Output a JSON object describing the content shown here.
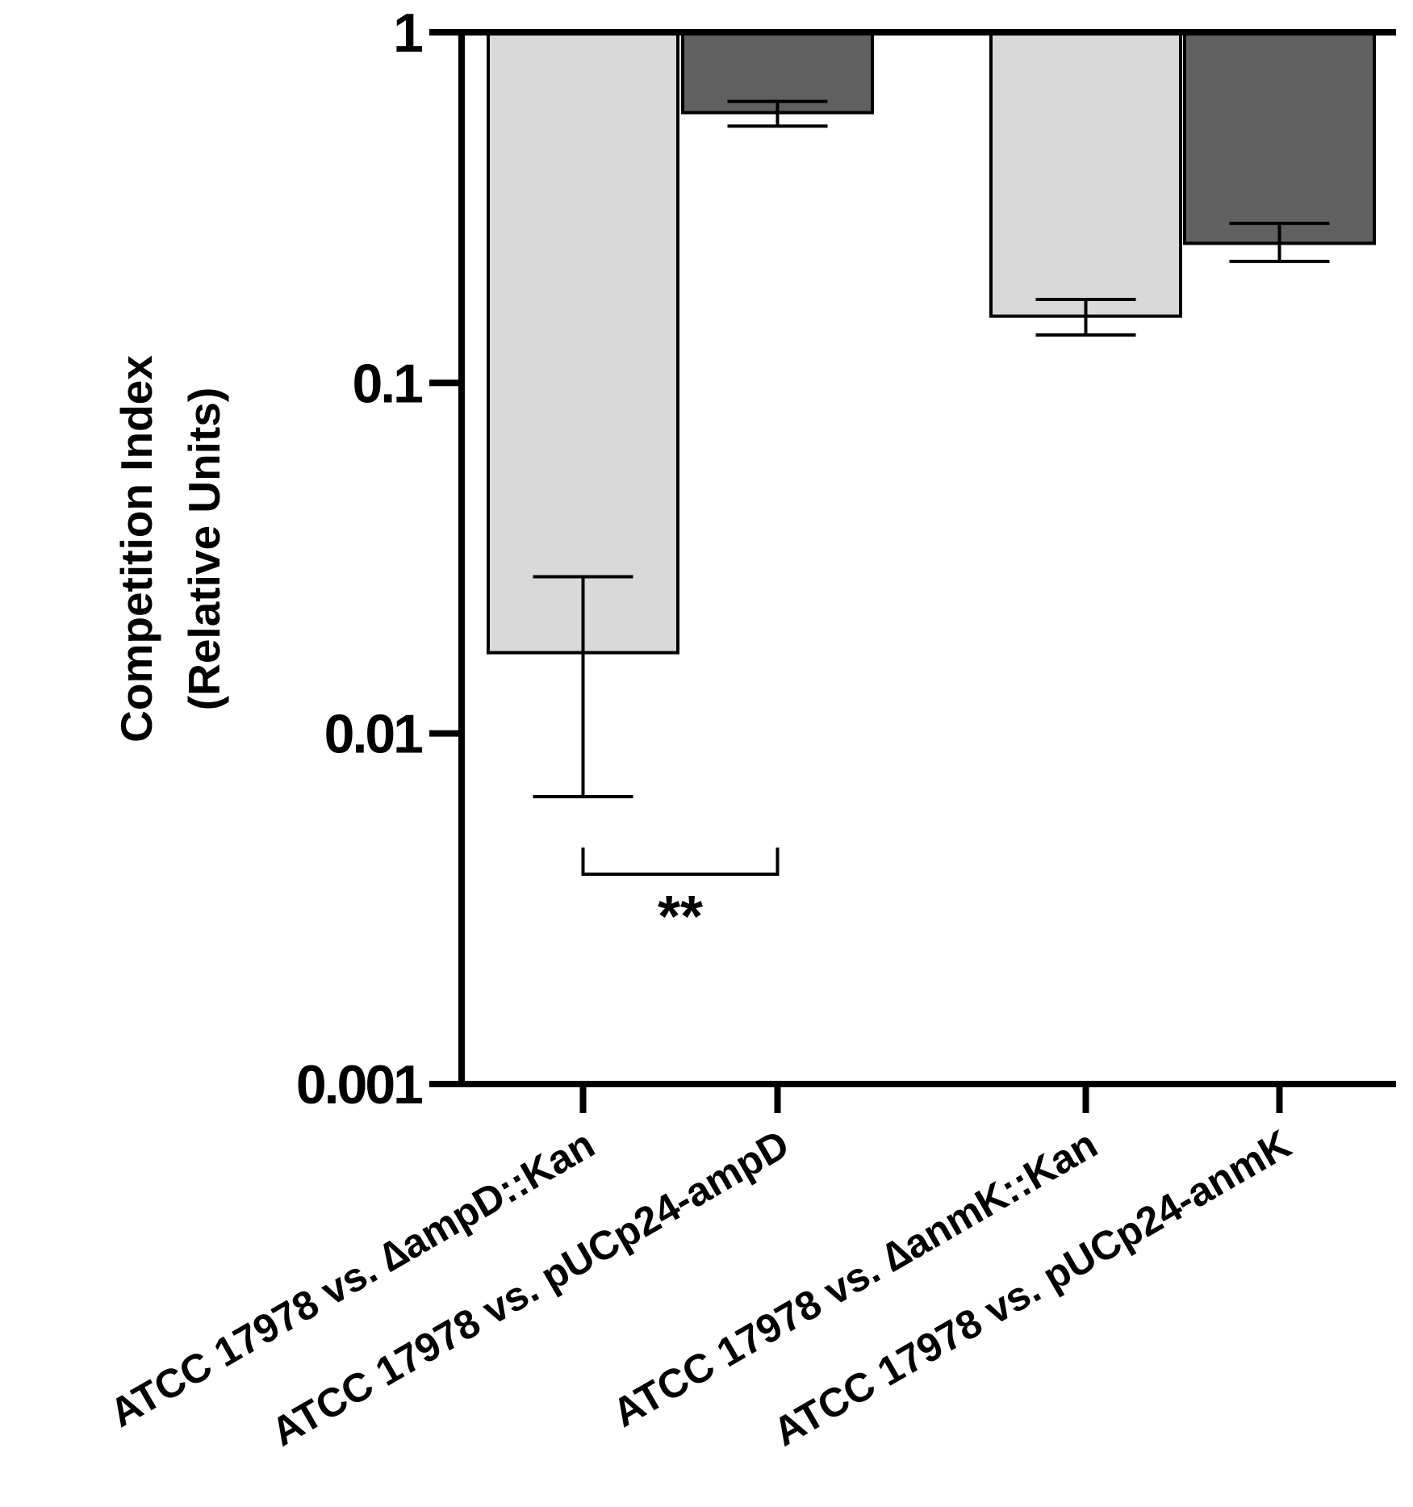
{
  "chart_data": {
    "type": "bar",
    "title": "",
    "xlabel": "",
    "ylabel_lines": [
      "Competition Index",
      "(Relative Units)"
    ],
    "yscale": "log",
    "ylim": [
      0.001,
      1
    ],
    "yticks": [
      {
        "value": 0.001,
        "label": "0.001"
      },
      {
        "value": 0.01,
        "label": "0.01"
      },
      {
        "value": 0.1,
        "label": "0.1"
      },
      {
        "value": 1,
        "label": "1"
      }
    ],
    "bars_hang_from": 1,
    "grid": false,
    "legend": "none",
    "categories": [
      "ATCC 17978 vs. ∆ampD::Kan",
      "ATCC 17978 vs. pUCp24-ampD",
      "ATCC 17978 vs. ∆anmK::Kan",
      "ATCC 17978 vs. pUCp24-anmK"
    ],
    "values": [
      0.017,
      0.59,
      0.155,
      0.25
    ],
    "error_low": [
      0.0066,
      0.54,
      0.137,
      0.222
    ],
    "error_high": [
      0.028,
      0.635,
      0.173,
      0.285
    ],
    "bar_colors": [
      "#d9d9d9",
      "#606060",
      "#d9d9d9",
      "#606060"
    ],
    "significance": [
      {
        "from": 0,
        "to": 1,
        "label": "**"
      }
    ]
  }
}
